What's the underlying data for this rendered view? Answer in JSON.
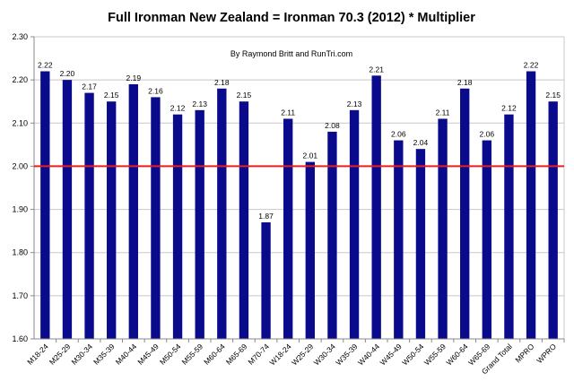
{
  "chart_data": {
    "type": "bar",
    "title": "Full Ironman New Zealand = Ironman 70.3 (2012) * Multiplier",
    "subtitle": "By Raymond Britt and RunTri.com",
    "categories": [
      "M18-24",
      "M25-29",
      "M30-34",
      "M35-39",
      "M40-44",
      "M45-49",
      "M50-54",
      "M55-59",
      "M60-64",
      "M65-69",
      "M70-74",
      "W18-24",
      "W25-29",
      "W30-34",
      "W35-39",
      "W40-44",
      "W45-49",
      "W50-54",
      "W55-59",
      "W60-64",
      "W65-69",
      "Grand Total",
      "MPRO",
      "WPRO"
    ],
    "values": [
      2.22,
      2.2,
      2.17,
      2.15,
      2.19,
      2.16,
      2.12,
      2.13,
      2.18,
      2.15,
      1.87,
      2.11,
      2.01,
      2.08,
      2.13,
      2.21,
      2.06,
      2.04,
      2.11,
      2.18,
      2.06,
      2.12,
      2.22,
      2.15
    ],
    "value_labels": [
      "2.22",
      "2.20",
      "2.17",
      "2.15",
      "2.19",
      "2.16",
      "2.12",
      "2.13",
      "2.18",
      "2.15",
      "1.87",
      "2.11",
      "2.01",
      "2.08",
      "2.13",
      "2.21",
      "2.06",
      "2.04",
      "2.11",
      "2.18",
      "2.06",
      "2.12",
      "2.22",
      "2.15"
    ],
    "ylim": [
      1.6,
      2.3
    ],
    "yticks": [
      "1.60",
      "1.70",
      "1.80",
      "1.90",
      "2.00",
      "2.10",
      "2.20",
      "2.30"
    ],
    "reference_line": 2.0,
    "grid": true,
    "legend": "none",
    "colors": {
      "bar": "#0a0a8c",
      "reference_line": "#ee1c1c",
      "grid": "#c8c8c8",
      "axis": "#888888"
    }
  }
}
